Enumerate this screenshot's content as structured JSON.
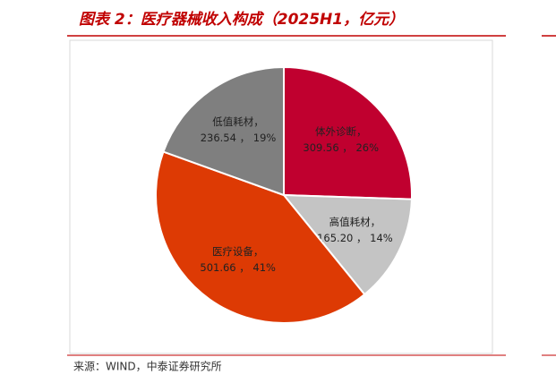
{
  "chart_data": {
    "type": "pie",
    "title": "图表 2：医疗器械收入构成（2025H1，亿元）",
    "source": "来源：WIND，中泰证券研究所",
    "categories": [
      "体外诊断，",
      "高值耗材，",
      "医疗设备，",
      "低值耗材，"
    ],
    "values": [
      309.56,
      165.2,
      501.66,
      236.54
    ],
    "value_labels": [
      "309.56 ， 26%",
      "165.20 ， 14%",
      "501.66 ， 41%",
      "236.54 ， 19%"
    ],
    "colors": [
      "#c0002f",
      "#c4c4c4",
      "#dd3a04",
      "#7f7f7f"
    ]
  }
}
